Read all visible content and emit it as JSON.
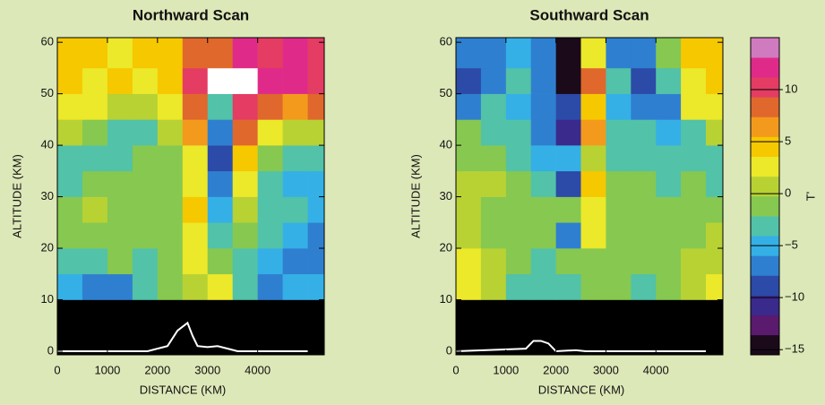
{
  "chart_data": [
    {
      "type": "heatmap",
      "title": "Northward Scan",
      "xlabel": "DISTANCE (KM)",
      "ylabel": "ALTITUDE (KM)",
      "xlim": [
        0,
        5330
      ],
      "ylim": [
        -0.7,
        60.9
      ],
      "xticks": [
        0,
        1000,
        2000,
        3000,
        4000
      ],
      "yticks": [
        0,
        10,
        20,
        30,
        40,
        50,
        60
      ],
      "x_edges": [
        0,
        500,
        1000,
        1500,
        2000,
        2500,
        3000,
        3500,
        4000,
        4500,
        5000,
        5330
      ],
      "y_edges": [
        10,
        15,
        20,
        25,
        30,
        35,
        40,
        45,
        50,
        55,
        60.9
      ],
      "values": [
        [
          -5,
          -6,
          -6,
          -4,
          -2,
          0,
          2,
          -4,
          -6,
          -5,
          -5
        ],
        [
          -4,
          -3,
          -2,
          -3,
          -2,
          2,
          -1,
          -3,
          -5,
          -6,
          -6
        ],
        [
          -2,
          -1,
          -1,
          -2,
          -2,
          3,
          -3,
          -2,
          -4,
          -5,
          -6
        ],
        [
          -1,
          0,
          -1,
          -1,
          -2,
          4,
          -5,
          0,
          -3,
          -4,
          -5
        ],
        [
          -3,
          -2,
          -1,
          -1,
          -1,
          3,
          -6,
          2,
          -3,
          -5,
          -5
        ],
        [
          -4,
          -4,
          -3,
          -2,
          -2,
          2,
          -8,
          4,
          -2,
          -4,
          -4
        ],
        [
          1,
          -2,
          -3,
          -3,
          0,
          6,
          -6,
          8,
          3,
          0,
          1
        ],
        [
          3,
          2,
          0,
          1,
          3,
          8,
          -4,
          10,
          9,
          7,
          9
        ],
        [
          4,
          3,
          4,
          3,
          5,
          11,
          16,
          16,
          12,
          12,
          10
        ],
        [
          5,
          4,
          3,
          5,
          4,
          9,
          8,
          12,
          11,
          13,
          11
        ]
      ],
      "series": [
        {
          "color": "#ffffff",
          "x": [
            0,
            1800,
            2200,
            2400,
            2600,
            2700,
            2800,
            3000,
            3200,
            3600,
            5000
          ],
          "values": [
            0,
            0,
            1,
            4,
            5.5,
            3,
            1,
            0.8,
            1,
            0,
            0
          ]
        }
      ]
    },
    {
      "type": "heatmap",
      "title": "Southward Scan",
      "xlabel": "DISTANCE (KM)",
      "ylabel": "ALTITUDE (KM)",
      "xlim": [
        0,
        5340
      ],
      "ylim": [
        -0.7,
        60.9
      ],
      "xticks": [
        0,
        1000,
        2000,
        3000,
        4000
      ],
      "yticks": [
        0,
        10,
        20,
        30,
        40,
        50,
        60
      ],
      "x_edges": [
        0,
        500,
        1000,
        1500,
        2000,
        2500,
        3000,
        3500,
        4000,
        4500,
        5000,
        5340
      ],
      "y_edges": [
        10,
        15,
        20,
        25,
        30,
        35,
        40,
        45,
        50,
        55,
        60.9
      ],
      "values": [
        [
          3,
          1,
          -3,
          -4,
          -4,
          -1,
          -2,
          -3,
          -2,
          0,
          2
        ],
        [
          2,
          0,
          -2,
          -3,
          -2,
          -1,
          -2,
          -2,
          -1,
          0,
          1
        ],
        [
          1,
          -1,
          -2,
          -2,
          -6,
          3,
          -1,
          -2,
          -1,
          -1,
          0
        ],
        [
          0,
          -1,
          -1,
          -2,
          -2,
          2,
          -2,
          -1,
          -2,
          -1,
          -1
        ],
        [
          1,
          0,
          -1,
          -3,
          -8,
          5,
          -2,
          -1,
          -3,
          -2,
          -3
        ],
        [
          -1,
          -2,
          -3,
          -5,
          -5,
          0,
          -4,
          -3,
          -3,
          -4,
          -3
        ],
        [
          -2,
          -3,
          -4,
          -6,
          -10,
          6,
          -4,
          -4,
          -5,
          -3,
          1
        ],
        [
          -6,
          -4,
          -5,
          -6,
          -8,
          4,
          -5,
          -7,
          -6,
          2,
          3
        ],
        [
          -8,
          -6,
          -4,
          -7,
          -14,
          8,
          -4,
          -8,
          -3,
          3,
          4
        ],
        [
          -7,
          -6,
          -5,
          -6,
          -15,
          3,
          -6,
          -7,
          -2,
          4,
          5
        ]
      ],
      "series": [
        {
          "color": "#ffffff",
          "x": [
            0,
            1400,
            1550,
            1700,
            1850,
            2000,
            2400,
            2600,
            5000
          ],
          "values": [
            0,
            0.5,
            2,
            2,
            1.5,
            0,
            0.2,
            0,
            0
          ]
        }
      ]
    }
  ],
  "colorbar": {
    "label": "T'",
    "lim": [
      -15.5,
      15
    ],
    "ticks": [
      {
        "value": -15,
        "label": "−15"
      },
      {
        "value": -10,
        "label": "−10"
      },
      {
        "value": -5,
        "label": "−5"
      },
      0,
      5,
      10
    ],
    "colors": [
      "#1a0a1a",
      "#5a1a6e",
      "#3a2a8c",
      "#2c4aa8",
      "#2f7fd0",
      "#34b0e6",
      "#52c2a8",
      "#86c850",
      "#b8d234",
      "#ece82a",
      "#f6c800",
      "#f39a1c",
      "#e0682c",
      "#e43c62",
      "#e02a8a",
      "#d07ac0"
    ],
    "over_color": "#ffffff"
  }
}
